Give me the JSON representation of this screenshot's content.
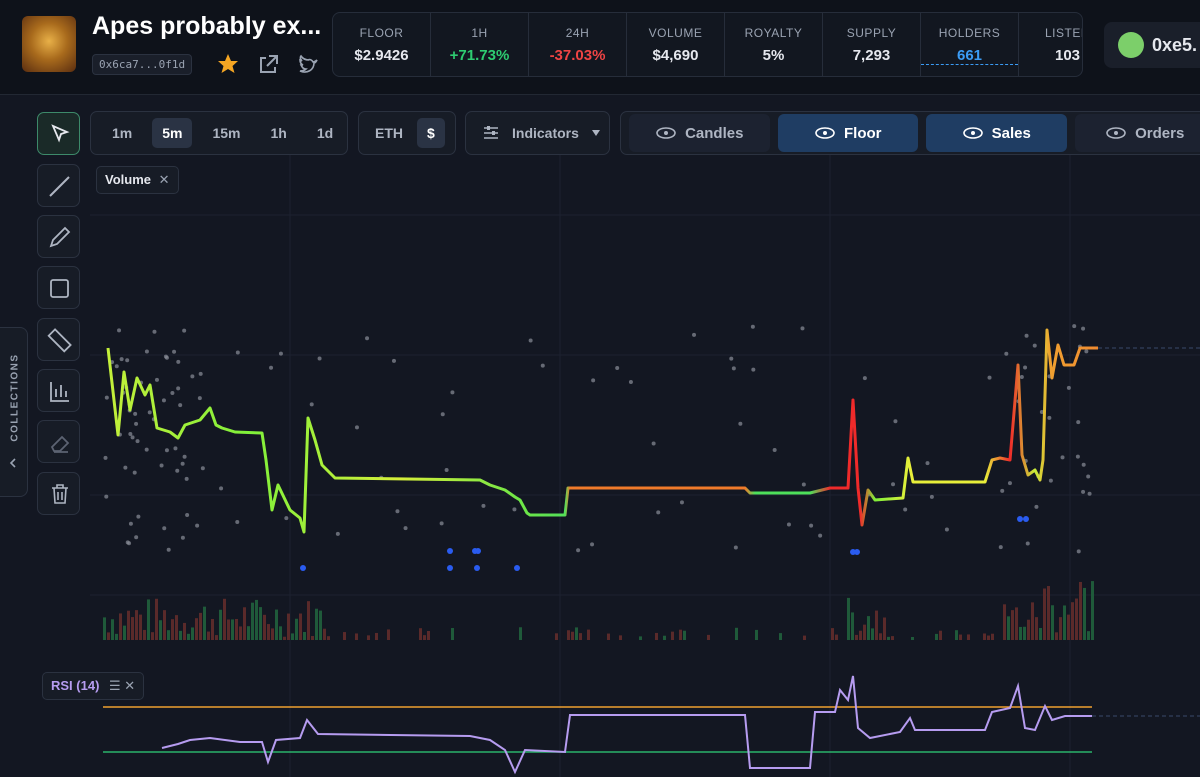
{
  "header": {
    "title": "Apes probably ex...",
    "address": "0x6ca7...0f1d",
    "wallet": "0xe5."
  },
  "stats": [
    {
      "label": "FLOOR",
      "value": "$2.9426"
    },
    {
      "label": "1H",
      "value": "+71.73%"
    },
    {
      "label": "24H",
      "value": "-37.03%"
    },
    {
      "label": "VOLUME",
      "value": "$4,690"
    },
    {
      "label": "ROYALTY",
      "value": "5%"
    },
    {
      "label": "SUPPLY",
      "value": "7,293"
    },
    {
      "label": "HOLDERS",
      "value": "661"
    },
    {
      "label": "LISTED",
      "value": "103"
    }
  ],
  "toolbar": {
    "intervals": [
      "1m",
      "5m",
      "15m",
      "1h",
      "1d"
    ],
    "currencies": [
      "ETH",
      "$"
    ],
    "indicators": "Indicators",
    "layers": [
      "Candles",
      "Floor",
      "Sales",
      "Orders"
    ]
  },
  "chart": {
    "volume_label": "Volume",
    "rsi_label": "RSI (14)"
  },
  "sidebar": {
    "label": "COLLECTIONS"
  }
}
